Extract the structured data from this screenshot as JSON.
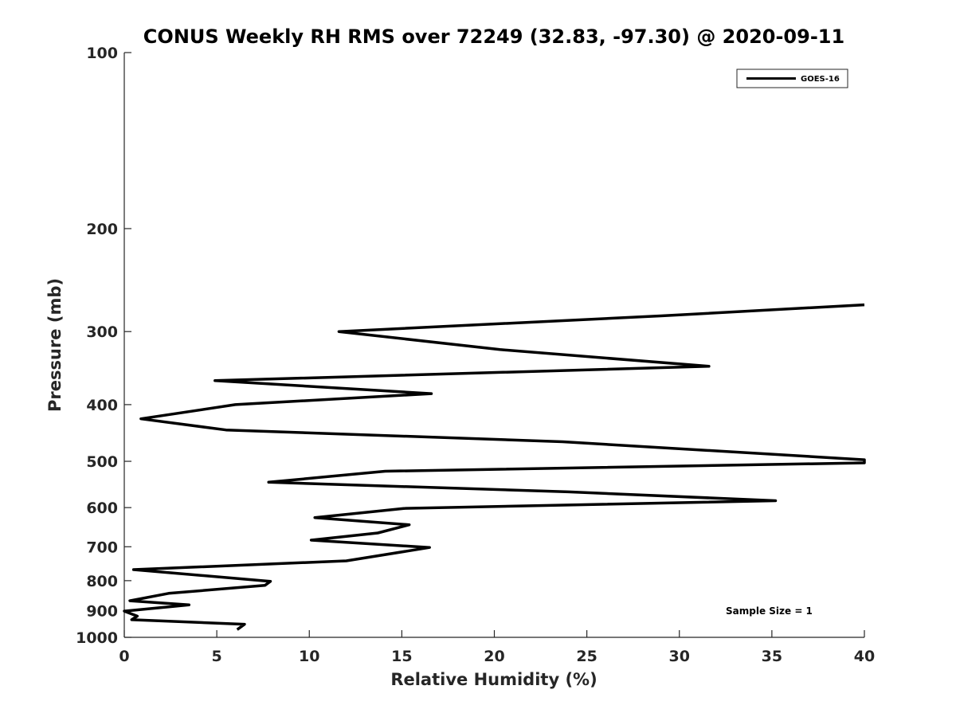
{
  "chart_data": {
    "type": "line",
    "title": "CONUS Weekly RH RMS over 72249 (32.83, -97.30) @ 2020-09-11",
    "xlabel": "Relative Humidity (%)",
    "ylabel": "Pressure (mb)",
    "xlim": [
      0,
      40
    ],
    "ylim": [
      100,
      1000
    ],
    "y_scale": "log",
    "y_reversed": true,
    "x_ticks": [
      "0",
      "5",
      "10",
      "15",
      "20",
      "25",
      "30",
      "35",
      "40"
    ],
    "y_ticks": [
      "100",
      "200",
      "300",
      "400",
      "500",
      "600",
      "700",
      "800",
      "900",
      "1000"
    ],
    "grid": false,
    "legend_position": "top-right",
    "series": [
      {
        "name": "GOES-16",
        "color": "#000000",
        "points": [
          {
            "x": 40.0,
            "y": 270
          },
          {
            "x": 29.0,
            "y": 282
          },
          {
            "x": 11.6,
            "y": 300
          },
          {
            "x": 20.3,
            "y": 322
          },
          {
            "x": 31.6,
            "y": 344
          },
          {
            "x": 4.9,
            "y": 364
          },
          {
            "x": 16.6,
            "y": 383
          },
          {
            "x": 6.0,
            "y": 400
          },
          {
            "x": 0.9,
            "y": 423
          },
          {
            "x": 5.5,
            "y": 442
          },
          {
            "x": 23.7,
            "y": 463
          },
          {
            "x": 40.0,
            "y": 497
          },
          {
            "x": 40.0,
            "y": 503
          },
          {
            "x": 14.1,
            "y": 520
          },
          {
            "x": 7.8,
            "y": 543
          },
          {
            "x": 24.0,
            "y": 564
          },
          {
            "x": 35.2,
            "y": 584
          },
          {
            "x": 15.1,
            "y": 602
          },
          {
            "x": 10.3,
            "y": 624
          },
          {
            "x": 15.4,
            "y": 642
          },
          {
            "x": 13.7,
            "y": 663
          },
          {
            "x": 10.1,
            "y": 682
          },
          {
            "x": 16.5,
            "y": 702
          },
          {
            "x": 12.0,
            "y": 740
          },
          {
            "x": 0.5,
            "y": 766
          },
          {
            "x": 7.9,
            "y": 802
          },
          {
            "x": 7.6,
            "y": 815
          },
          {
            "x": 2.4,
            "y": 841
          },
          {
            "x": 0.3,
            "y": 866
          },
          {
            "x": 3.5,
            "y": 880
          },
          {
            "x": 0.0,
            "y": 902
          },
          {
            "x": 0.7,
            "y": 920
          },
          {
            "x": 0.4,
            "y": 933
          },
          {
            "x": 6.5,
            "y": 950
          },
          {
            "x": 6.1,
            "y": 970
          }
        ]
      }
    ],
    "annotations": [
      {
        "text": "Sample Size = 1"
      }
    ]
  }
}
